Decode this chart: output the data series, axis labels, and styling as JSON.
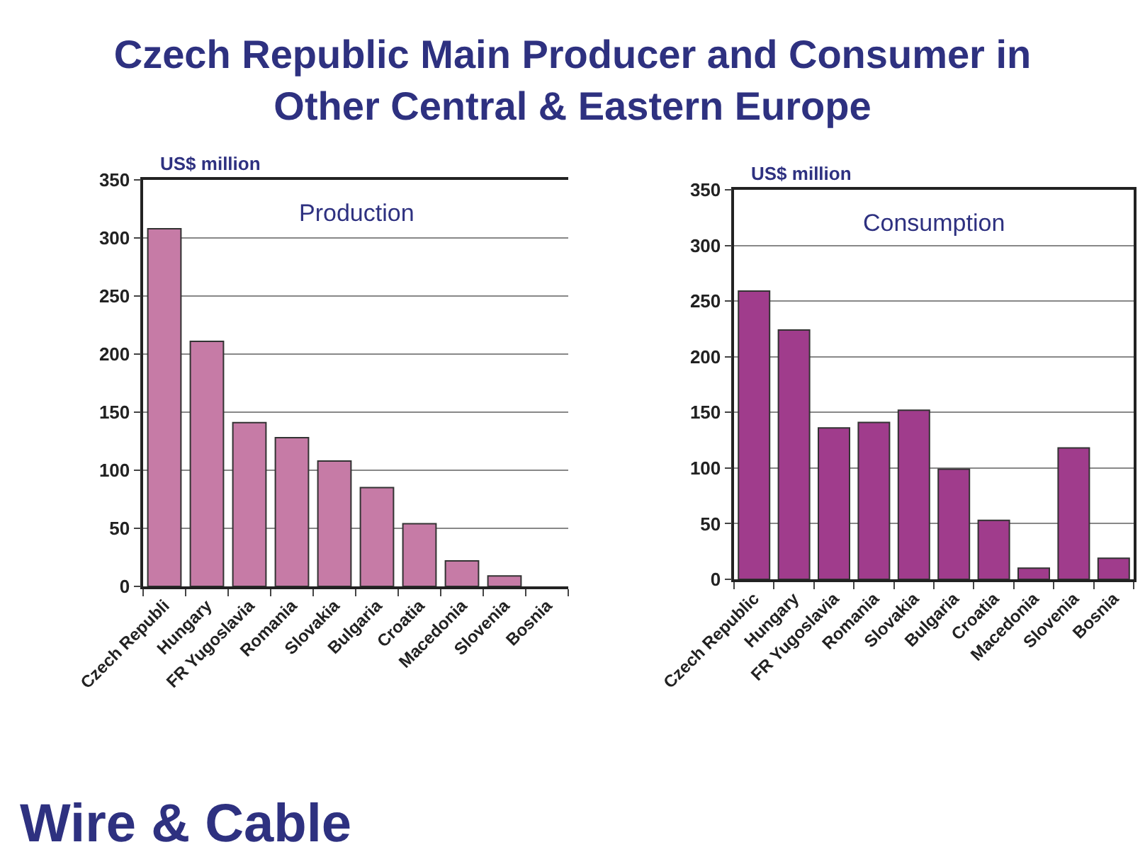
{
  "chart_data": [
    {
      "type": "bar",
      "title": "Czech Republic Main Producer and Consumer in Other Central & Eastern Europe",
      "subtitle": "Production",
      "ylabel": "US$ million",
      "categories": [
        "Czech Republi",
        "Hungary",
        "FR Yugoslavia",
        "Romania",
        "Slovakia",
        "Bulgaria",
        "Croatia",
        "Macedonia",
        "Slovenia",
        "Bosnia"
      ],
      "series": [
        {
          "color": "#c67ba6",
          "values": [
            308,
            211,
            141,
            128,
            108,
            85,
            54,
            22,
            9,
            null
          ]
        }
      ],
      "ylim": [
        0,
        350
      ],
      "yticks": [
        0,
        50,
        100,
        150,
        200,
        250,
        300,
        350
      ],
      "grid": "y",
      "annotations": [
        "Wire & Cable"
      ]
    },
    {
      "type": "bar",
      "subtitle": "Consumption",
      "ylabel": "US$ million",
      "categories": [
        "Czech Republic",
        "Hungary",
        "FR Yugoslavia",
        "Romania",
        "Slovakia",
        "Bulgaria",
        "Croatia",
        "Macedonia",
        "Slovenia",
        "Bosnia"
      ],
      "series": [
        {
          "color": "#a03c8c",
          "values": [
            259,
            224,
            136,
            141,
            152,
            99,
            53,
            10,
            118,
            19
          ]
        }
      ],
      "ylim": [
        0,
        350
      ],
      "yticks": [
        0,
        50,
        100,
        150,
        200,
        250,
        300,
        350
      ],
      "grid": "y"
    }
  ]
}
